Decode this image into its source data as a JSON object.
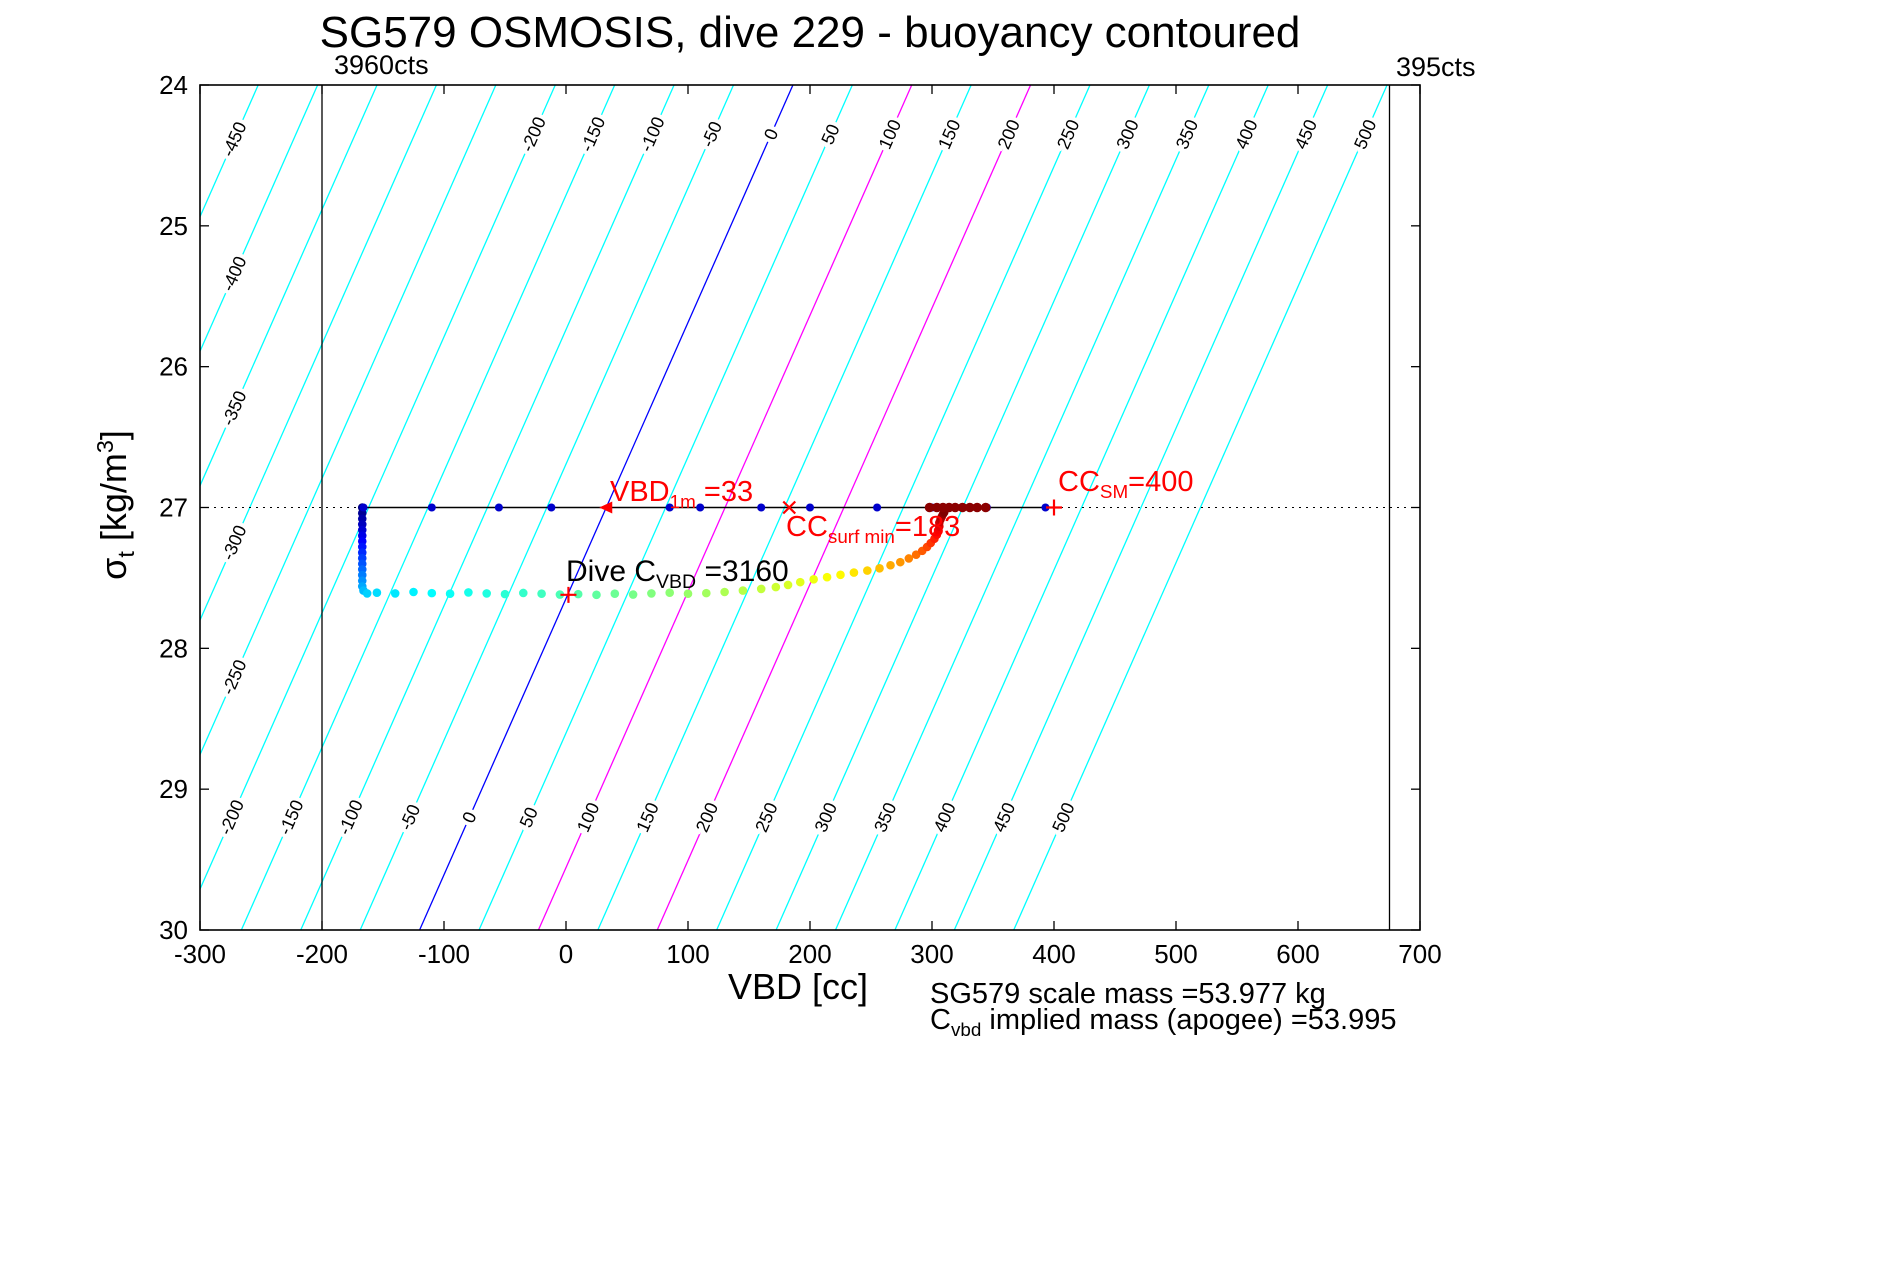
{
  "title": "SG579 OSMOSIS, dive 229 - buoyancy contoured",
  "axes": {
    "xlabel": "VBD [cc]",
    "ylabel": {
      "pre": "σ",
      "sub": "t",
      "mid": " [kg/m",
      "sup": "3",
      "post": "]"
    }
  },
  "counts_labels": {
    "left": "3960cts",
    "right": "395cts"
  },
  "annotations": {
    "vbd1m": {
      "pre": "VBD",
      "sub": "1m",
      "post": " =33"
    },
    "cc_surf_min": {
      "pre": "CC",
      "sub": "surf min",
      "post": "=183"
    },
    "cc_sm": {
      "pre": "CC",
      "sub": "SM",
      "post": "=400"
    },
    "dive_cvbd": {
      "pre": "Dive C",
      "sub": "VBD",
      "post": " =3160"
    },
    "scale_mass": "SG579 scale mass =53.977 kg",
    "implied_mass": {
      "pre": "C",
      "sub": "vbd",
      "post": " implied mass (apogee) =53.995"
    }
  },
  "chart_data": {
    "type": "scatter",
    "title": "SG579 OSMOSIS, dive 229 - buoyancy contoured",
    "xlabel": "VBD [cc]",
    "ylabel": "sigma_t [kg/m^3]",
    "xlim": [
      -300,
      700
    ],
    "ylim": [
      24,
      30
    ],
    "y_axis_reversed": true,
    "x_ticks": [
      -300,
      -200,
      -100,
      0,
      100,
      200,
      300,
      400,
      500,
      600,
      700
    ],
    "y_ticks": [
      24,
      25,
      26,
      27,
      28,
      29,
      30
    ],
    "grid": false,
    "contours": {
      "comment": "buoyancy contours in grams, diagonal lines; VBD(C,sigma)=anchor+0.974*C+slope*(sigma-27)",
      "values": [
        -450,
        -400,
        -350,
        -300,
        -250,
        -200,
        -150,
        -100,
        -50,
        0,
        50,
        100,
        150,
        200,
        250,
        300,
        350,
        400,
        450,
        500
      ],
      "anchor_vbd_at_sigma27_for_zero": 33,
      "vbd_per_unit_buoyancy": 0.974,
      "vbd_per_unit_sigma": -51,
      "default_color": "#00ffff",
      "blue_values": [
        0
      ],
      "magenta_values": [
        100,
        200
      ]
    },
    "vbd_limit_lines": [
      {
        "vbd_cc": -200,
        "label": "3960cts"
      },
      {
        "vbd_cc": 675,
        "label": "395cts"
      }
    ],
    "sigma_reference_dotted": 27,
    "apogee_line": {
      "sigma": 27,
      "vbd_start": -168,
      "vbd_end": 403,
      "blue_dots_vbd": [
        -166,
        -110,
        -55,
        -12,
        85,
        110,
        160,
        200,
        255,
        300,
        345,
        393
      ],
      "dark_red_dots_vbd": [
        298,
        304,
        309,
        314,
        319,
        325,
        331,
        337,
        344
      ]
    },
    "markers": [
      {
        "shape": "triangle-left",
        "vbd": 33,
        "sigma": 27.0,
        "color": "#ff0000",
        "label": "VBD_1m =33"
      },
      {
        "shape": "x",
        "vbd": 183,
        "sigma": 27.0,
        "color": "#ff0000",
        "label": "CC_surf min =183"
      },
      {
        "shape": "plus",
        "vbd": 400,
        "sigma": 27.0,
        "color": "#ff0000",
        "label": "CC_SM =400"
      },
      {
        "shape": "plus",
        "vbd": 2,
        "sigma": 27.62,
        "color": "#ff0000",
        "label": "Dive C_VBD =3160"
      }
    ],
    "dive_trace_colormap": "jet",
    "dive_trace": [
      [
        -167,
        27.0
      ],
      [
        -167,
        27.04
      ],
      [
        -167,
        27.08
      ],
      [
        -167,
        27.12
      ],
      [
        -167,
        27.16
      ],
      [
        -167,
        27.2
      ],
      [
        -167,
        27.24
      ],
      [
        -167,
        27.28
      ],
      [
        -167,
        27.32
      ],
      [
        -167,
        27.36
      ],
      [
        -167,
        27.4
      ],
      [
        -167,
        27.44
      ],
      [
        -167,
        27.48
      ],
      [
        -167,
        27.52
      ],
      [
        -167,
        27.56
      ],
      [
        -166,
        27.59
      ],
      [
        -163,
        27.61
      ],
      [
        -155,
        27.605
      ],
      [
        -140,
        27.61
      ],
      [
        -125,
        27.6
      ],
      [
        -110,
        27.608
      ],
      [
        -95,
        27.612
      ],
      [
        -80,
        27.603
      ],
      [
        -65,
        27.61
      ],
      [
        -50,
        27.615
      ],
      [
        -35,
        27.607
      ],
      [
        -20,
        27.612
      ],
      [
        -5,
        27.618
      ],
      [
        10,
        27.615
      ],
      [
        25,
        27.62
      ],
      [
        40,
        27.612
      ],
      [
        55,
        27.618
      ],
      [
        70,
        27.61
      ],
      [
        85,
        27.605
      ],
      [
        100,
        27.612
      ],
      [
        115,
        27.608
      ],
      [
        130,
        27.6
      ],
      [
        145,
        27.59
      ],
      [
        160,
        27.578
      ],
      [
        172,
        27.565
      ],
      [
        182,
        27.55
      ],
      [
        192,
        27.53
      ],
      [
        203,
        27.51
      ],
      [
        214,
        27.495
      ],
      [
        225,
        27.478
      ],
      [
        236,
        27.462
      ],
      [
        247,
        27.448
      ],
      [
        257,
        27.432
      ],
      [
        266,
        27.41
      ],
      [
        274,
        27.388
      ],
      [
        281,
        27.362
      ],
      [
        287,
        27.335
      ],
      [
        292,
        27.308
      ],
      [
        296,
        27.28
      ],
      [
        299,
        27.252
      ],
      [
        302,
        27.222
      ],
      [
        304,
        27.193
      ],
      [
        305,
        27.163
      ],
      [
        306,
        27.135
      ],
      [
        306,
        27.108
      ],
      [
        307,
        27.085
      ],
      [
        308,
        27.065
      ],
      [
        309,
        27.048
      ],
      [
        310,
        27.035
      ]
    ]
  }
}
